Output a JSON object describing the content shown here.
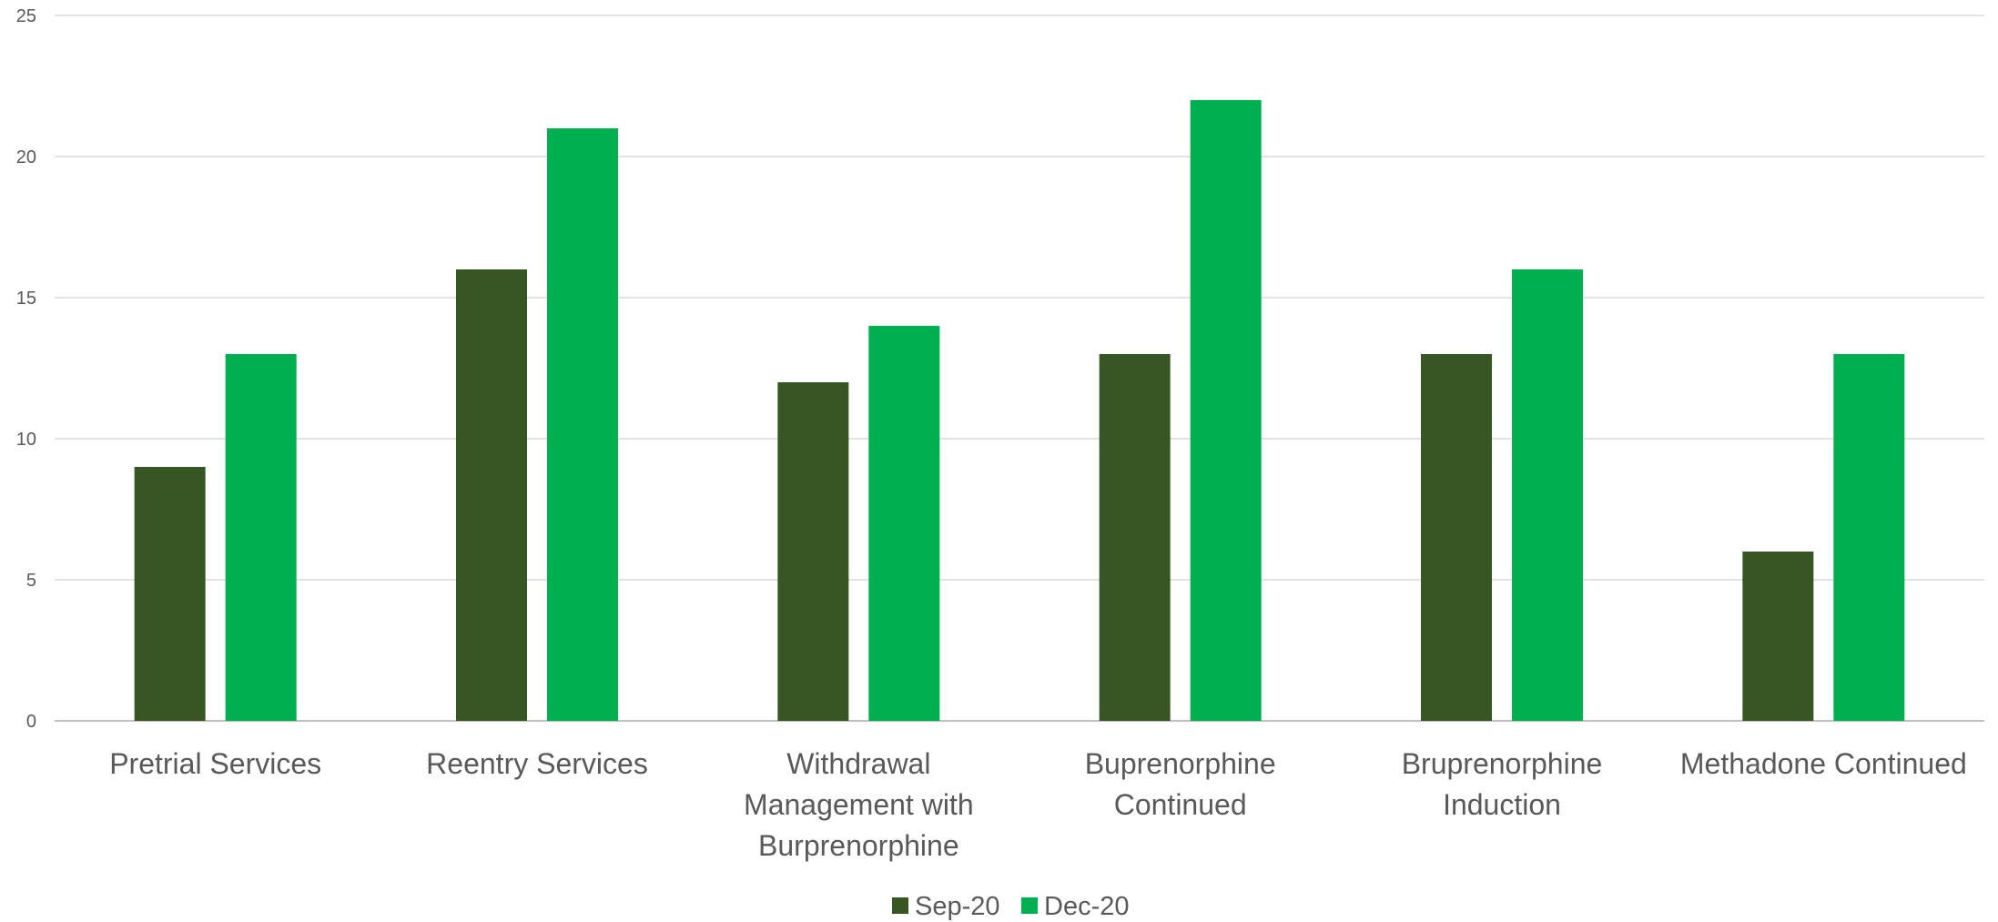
{
  "chart_data": {
    "type": "bar",
    "categories": [
      "Pretrial Services",
      "Reentry Services",
      "Withdrawal Management with Burprenorphine",
      "Buprenorphine Continued",
      "Bruprenorphine Induction",
      "Methadone Continued"
    ],
    "category_lines": [
      [
        "Pretrial Services"
      ],
      [
        "Reentry Services"
      ],
      [
        "Withdrawal",
        "Management with",
        "Burprenorphine"
      ],
      [
        "Buprenorphine",
        "Continued"
      ],
      [
        "Bruprenorphine",
        "Induction"
      ],
      [
        "Methadone Continued"
      ]
    ],
    "series": [
      {
        "name": "Sep-20",
        "color": "#375623",
        "values": [
          9,
          16,
          12,
          13,
          13,
          6
        ]
      },
      {
        "name": "Dec-20",
        "color": "#00B050",
        "values": [
          13,
          21,
          14,
          22,
          16,
          13
        ]
      }
    ],
    "ylim": [
      0,
      25
    ],
    "yticks": [
      0,
      5,
      10,
      15,
      20,
      25
    ],
    "grid": true,
    "legend_position": "bottom-center"
  }
}
